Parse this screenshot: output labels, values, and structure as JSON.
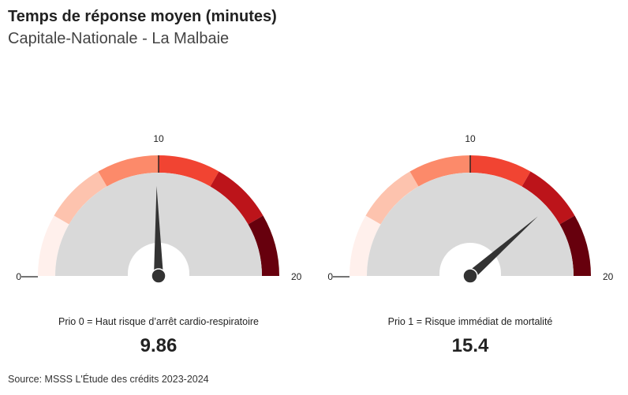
{
  "header": {
    "title": "Temps de réponse moyen (minutes)",
    "subtitle": "Capitale-Nationale - La Malbaie"
  },
  "footer": {
    "source": "Source: MSSS L'Étude des crédits 2023-2024"
  },
  "chart_data": [
    {
      "type": "gauge",
      "min": 0,
      "max": 20,
      "value": 9.86,
      "value_label": "9.86",
      "label": "Prio 0 = Haut risque d’arrêt cardio-respiratoire",
      "tick_labels": [
        "0",
        "10",
        "20"
      ],
      "band_colors": [
        "#fff0ec",
        "#fdc3ae",
        "#fc8a6a",
        "#f14432",
        "#bc141a",
        "#67000d"
      ]
    },
    {
      "type": "gauge",
      "min": 0,
      "max": 20,
      "value": 15.4,
      "value_label": "15.4",
      "label": "Prio 1 = Risque immédiat de mortalité",
      "tick_labels": [
        "0",
        "10",
        "20"
      ],
      "band_colors": [
        "#fff0ec",
        "#fdc3ae",
        "#fc8a6a",
        "#f14432",
        "#bc141a",
        "#67000d"
      ]
    }
  ]
}
